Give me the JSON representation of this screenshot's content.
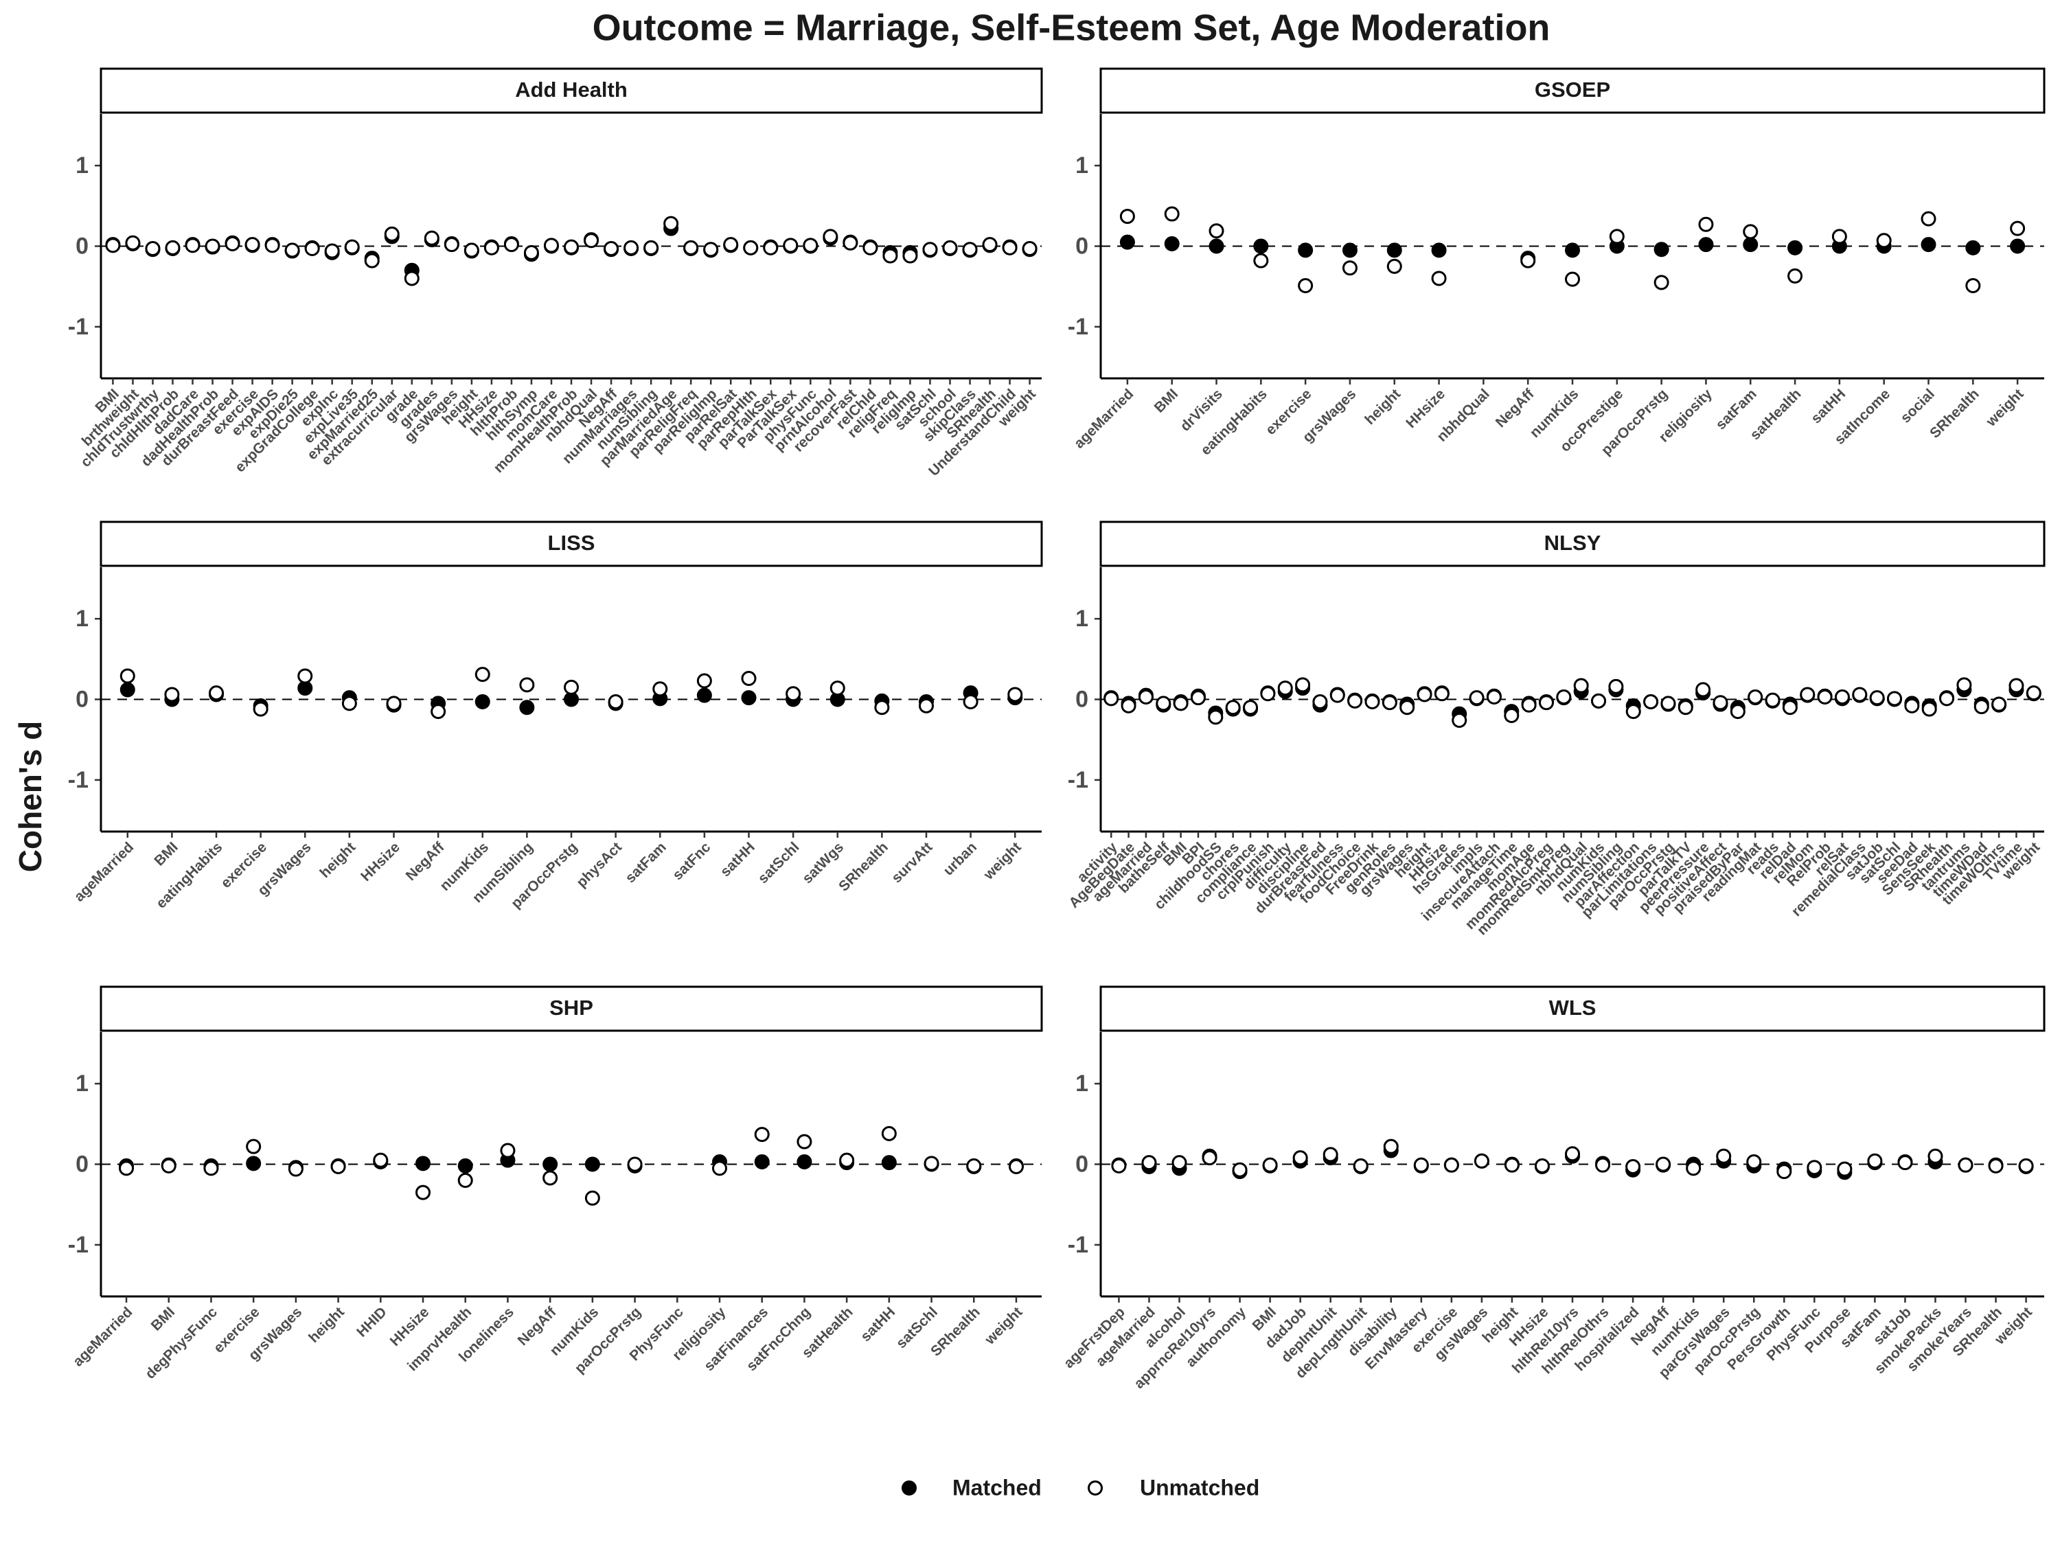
{
  "title": "Outcome = Marriage, Self-Esteem Set, Age Moderation",
  "y_label": "Cohen's d",
  "chart_data": [
    {
      "type": "point",
      "title": "Add Health",
      "categories": [
        "BMI",
        "brthweight",
        "chldTrustwrthy",
        "chldHlthProb",
        "dadCare",
        "dadHealthProb",
        "durBreastFeed",
        "exercise",
        "expAIDS",
        "expDie25",
        "expGradCollege",
        "expInc",
        "expLive35",
        "expMarried25",
        "extracurricular",
        "grade",
        "grades",
        "grsWages",
        "height",
        "HHsize",
        "hlthProb",
        "hlthSymp",
        "momCare",
        "momHealthProb",
        "nbhdQual",
        "NegAff",
        "numMarriages",
        "numSibling",
        "parMarriedAge",
        "parReligFreq",
        "parReligImp",
        "parRelSat",
        "parRepHlth",
        "parTalkSex",
        "ParTalkSex",
        "physFunc",
        "prntAlcohol",
        "recoverFast",
        "relChld",
        "religFreq",
        "religImp",
        "satSchl",
        "school",
        "skipClass",
        "SRhealth",
        "UnderstandChild",
        "weight"
      ],
      "series": [
        {
          "name": "Matched",
          "color": "#000000",
          "values": [
            0.02,
            0.03,
            -0.04,
            -0.03,
            0.02,
            -0.01,
            0.04,
            0.01,
            0.02,
            -0.06,
            -0.02,
            -0.08,
            -0.02,
            -0.15,
            0.12,
            -0.3,
            0.08,
            0.03,
            -0.06,
            -0.01,
            0.03,
            -0.1,
            0,
            -0.02,
            0.08,
            -0.04,
            -0.03,
            -0.03,
            0.22,
            -0.03,
            -0.05,
            0.01,
            -0.02,
            -0.01,
            0,
            0,
            0.1,
            0.05,
            -0.01,
            -0.08,
            -0.08,
            -0.05,
            -0.03,
            -0.05,
            0.01,
            -0.01,
            -0.04
          ]
        },
        {
          "name": "Unmatched",
          "color": "#ffffff",
          "values": [
            0.01,
            0.04,
            -0.03,
            -0.02,
            0.01,
            0,
            0.03,
            0.02,
            0.01,
            -0.05,
            -0.03,
            -0.06,
            -0.01,
            -0.18,
            0.15,
            -0.4,
            0.1,
            0.02,
            -0.05,
            -0.02,
            0.02,
            -0.08,
            0.01,
            -0.01,
            0.07,
            -0.03,
            -0.02,
            -0.02,
            0.28,
            -0.02,
            -0.04,
            0.02,
            -0.02,
            -0.02,
            0.01,
            0.01,
            0.12,
            0.04,
            -0.02,
            -0.12,
            -0.12,
            -0.04,
            -0.02,
            -0.04,
            0.02,
            -0.02,
            -0.03
          ]
        }
      ],
      "ylim": [
        -1.64,
        1.64
      ],
      "yticks": [
        -1,
        0,
        1
      ],
      "hline": 0
    },
    {
      "type": "point",
      "title": "GSOEP",
      "categories": [
        "ageMarried",
        "BMI",
        "drVisits",
        "eatingHabits",
        "exercise",
        "grsWages",
        "height",
        "HHsize",
        "nbhdQual",
        "NegAff",
        "numKids",
        "occPrestige",
        "parOccPrstg",
        "religiosity",
        "satFam",
        "satHealth",
        "satHH",
        "satIncome",
        "social",
        "SRhealth",
        "weight"
      ],
      "series": [
        {
          "name": "Matched",
          "color": "#000000",
          "values": [
            0.05,
            0.03,
            0,
            0,
            -0.05,
            -0.05,
            -0.05,
            -0.05,
            null,
            -0.15,
            -0.05,
            0,
            -0.04,
            0.02,
            0.02,
            -0.02,
            0,
            0,
            0.02,
            -0.02,
            0
          ]
        },
        {
          "name": "Unmatched",
          "color": "#ffffff",
          "values": [
            0.37,
            0.4,
            0.19,
            -0.18,
            -0.49,
            -0.27,
            -0.25,
            -0.4,
            null,
            -0.18,
            -0.41,
            0.12,
            -0.45,
            0.27,
            0.18,
            -0.37,
            0.12,
            0.07,
            0.34,
            -0.49,
            0.22
          ]
        }
      ],
      "ylim": [
        -1.64,
        1.64
      ],
      "yticks": [
        -1,
        0,
        1
      ],
      "hline": 0
    },
    {
      "type": "point",
      "title": "LISS",
      "categories": [
        "ageMarried",
        "BMI",
        "eatingHabits",
        "exercise",
        "grsWages",
        "height",
        "HHsize",
        "NegAff",
        "numKids",
        "numSibling",
        "parOccPrstg",
        "physAct",
        "satFam",
        "satFnc",
        "satHH",
        "satSchl",
        "satWgs",
        "SRhealth",
        "survAtt",
        "urban",
        "weight"
      ],
      "series": [
        {
          "name": "Matched",
          "color": "#000000",
          "values": [
            0.12,
            0,
            0.06,
            -0.08,
            0.14,
            0.02,
            -0.07,
            -0.05,
            -0.03,
            -0.1,
            0,
            -0.05,
            0.01,
            0.05,
            0.02,
            0,
            0,
            -0.02,
            -0.03,
            0.08,
            0.02
          ]
        },
        {
          "name": "Unmatched",
          "color": "#ffffff",
          "values": [
            0.29,
            0.06,
            0.08,
            -0.12,
            0.29,
            -0.05,
            -0.05,
            -0.15,
            0.31,
            0.18,
            0.15,
            -0.03,
            0.13,
            0.23,
            0.26,
            0.07,
            0.14,
            -0.1,
            -0.08,
            -0.03,
            0.06
          ]
        }
      ],
      "ylim": [
        -1.64,
        1.64
      ],
      "yticks": [
        -1,
        0,
        1
      ],
      "hline": 0
    },
    {
      "type": "point",
      "title": "NLSY",
      "categories": [
        "activity",
        "AgeBegDate",
        "ageMarried",
        "batheSelf",
        "BMI",
        "BPI",
        "childhoodSS",
        "chores",
        "compliance",
        "crplPunish",
        "difficulty",
        "discipline",
        "durBreastFed",
        "fearfulness",
        "foodChoice",
        "FreeDrink",
        "genRoles",
        "grsWages",
        "height",
        "HHsize",
        "hsGrades",
        "impls",
        "insecureAttach",
        "manageTime",
        "momAge",
        "momRedAlcPreg",
        "momRedSmkPreg",
        "nbhdQual",
        "numKids",
        "numSibling",
        "parAffection",
        "parLimitations",
        "parOccPrstg",
        "parTalkTV",
        "peerPressure",
        "positiveAffect",
        "praisedByPar",
        "readingMat",
        "reads",
        "relDad",
        "relMom",
        "RelProb",
        "relSat",
        "remedialClass",
        "satJob",
        "satSchl",
        "seeDad",
        "SensSeek",
        "SRhealth",
        "tantrums",
        "timeWDad",
        "timeWOthrs",
        "TVtime",
        "weight"
      ],
      "series": [
        {
          "name": "Matched",
          "color": "#000000",
          "values": [
            0.02,
            -0.05,
            0.05,
            -0.07,
            -0.03,
            0.04,
            -0.17,
            -0.12,
            -0.12,
            0.08,
            0.1,
            0.14,
            -0.07,
            0.06,
            -0.01,
            -0.02,
            -0.03,
            -0.06,
            0.07,
            0.08,
            -0.18,
            0.01,
            0.04,
            -0.15,
            -0.05,
            -0.03,
            0.02,
            0.1,
            -0.02,
            0.12,
            -0.08,
            -0.03,
            -0.06,
            -0.08,
            0.08,
            -0.06,
            -0.1,
            0.02,
            -0.02,
            -0.06,
            0.05,
            0.04,
            0.01,
            0.05,
            0.01,
            0,
            -0.05,
            -0.08,
            0.02,
            0.12,
            -0.06,
            -0.07,
            0.12,
            0.07
          ]
        },
        {
          "name": "Unmatched",
          "color": "#ffffff",
          "values": [
            0.01,
            -0.08,
            0.03,
            -0.05,
            -0.05,
            0.02,
            -0.22,
            -0.1,
            -0.1,
            0.07,
            0.14,
            0.18,
            -0.03,
            0.05,
            -0.02,
            -0.03,
            -0.04,
            -0.1,
            0.06,
            0.07,
            -0.26,
            0.02,
            0.03,
            -0.2,
            -0.07,
            -0.04,
            0.03,
            0.17,
            -0.02,
            0.16,
            -0.15,
            -0.03,
            -0.05,
            -0.1,
            0.12,
            -0.04,
            -0.15,
            0.03,
            -0.01,
            -0.1,
            0.06,
            0.03,
            0.03,
            0.06,
            0.02,
            0.01,
            -0.08,
            -0.12,
            0.01,
            0.18,
            -0.09,
            -0.06,
            0.17,
            0.08
          ]
        }
      ],
      "ylim": [
        -1.64,
        1.64
      ],
      "yticks": [
        -1,
        0,
        1
      ],
      "hline": 0
    },
    {
      "type": "point",
      "title": "SHP",
      "categories": [
        "ageMarried",
        "BMI",
        "degPhysFunc",
        "exercise",
        "grsWages",
        "height",
        "HHID",
        "HHsize",
        "imprvHealth",
        "loneliness",
        "NegAff",
        "numKids",
        "parOccPrstg",
        "PhysFunc",
        "religiosity",
        "satFinances",
        "satFncChng",
        "satHealth",
        "satHH",
        "satSchl",
        "SRhealth",
        "weight"
      ],
      "series": [
        {
          "name": "Matched",
          "color": "#000000",
          "values": [
            -0.02,
            -0.01,
            -0.02,
            0.01,
            -0.04,
            -0.02,
            0.03,
            0.01,
            -0.02,
            0.05,
            0,
            0,
            -0.02,
            null,
            0.03,
            0.03,
            0.03,
            0.02,
            0.02,
            0,
            -0.03,
            -0.02
          ]
        },
        {
          "name": "Unmatched",
          "color": "#ffffff",
          "values": [
            -0.05,
            -0.02,
            -0.05,
            0.22,
            -0.06,
            -0.03,
            0.05,
            -0.35,
            -0.2,
            0.17,
            -0.17,
            -0.42,
            0,
            null,
            -0.05,
            0.37,
            0.28,
            0.05,
            0.38,
            0.01,
            -0.02,
            -0.03
          ]
        }
      ],
      "ylim": [
        -1.64,
        1.64
      ],
      "yticks": [
        -1,
        0,
        1
      ],
      "hline": 0
    },
    {
      "type": "point",
      "title": "WLS",
      "categories": [
        "ageFrstDep",
        "ageMarried",
        "alcohol",
        "apprncRel10yrs",
        "authonomy",
        "BMI",
        "dadJob",
        "depIntUnit",
        "depLngthUnit",
        "disability",
        "EnvMastery",
        "exercise",
        "grsWages",
        "height",
        "HHsize",
        "hlthRel10yrs",
        "hlthRelOthrs",
        "hospitalized",
        "NegAff",
        "numKids",
        "parGrsWages",
        "parOccPrstg",
        "PersGrowth",
        "PhysFunc",
        "Purpose",
        "satFam",
        "satJob",
        "smokePacks",
        "smokeYears",
        "SRhealth",
        "weight"
      ],
      "series": [
        {
          "name": "Matched",
          "color": "#000000",
          "values": [
            -0.01,
            -0.03,
            -0.05,
            0.1,
            -0.09,
            -0.02,
            0.04,
            0.08,
            -0.03,
            0.17,
            -0.02,
            -0.01,
            0.04,
            0,
            -0.03,
            0.1,
            0.01,
            -0.07,
            -0.01,
            0,
            0.04,
            -0.02,
            -0.06,
            -0.08,
            -0.1,
            0.02,
            0.03,
            0.03,
            -0.01,
            -0.01,
            -0.03
          ]
        },
        {
          "name": "Unmatched",
          "color": "#ffffff",
          "values": [
            -0.02,
            0.02,
            0.02,
            0.08,
            -0.07,
            -0.01,
            0.08,
            0.12,
            -0.02,
            0.22,
            -0.01,
            -0.01,
            0.04,
            -0.01,
            -0.02,
            0.13,
            -0.01,
            -0.03,
            0,
            -0.05,
            0.1,
            0.03,
            -0.09,
            -0.04,
            -0.06,
            0.04,
            0.02,
            0.1,
            -0.01,
            -0.02,
            -0.02
          ]
        }
      ],
      "ylim": [
        -1.64,
        1.64
      ],
      "yticks": [
        -1,
        0,
        1
      ],
      "hline": 0
    }
  ]
}
